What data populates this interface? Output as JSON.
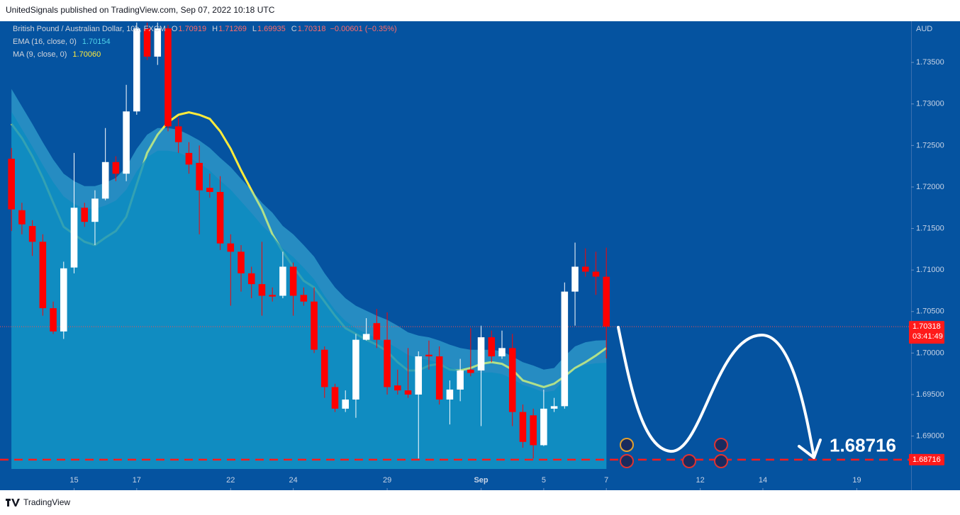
{
  "header": "UnitedSignals published on TradingView.com, Sep 07, 2022 10:18 UTC",
  "footer": "TradingView",
  "chart_data": {
    "type": "candlestick",
    "title": "British Pound / Australian Dollar, 10h, FXCM",
    "ohlc_labels": [
      "O",
      "H",
      "L",
      "C"
    ],
    "change": "−0.00601 (−0.35%)",
    "currency": "AUD",
    "countdown": "03:41:49",
    "target": 1.68716,
    "up_color": "#ffffff",
    "down_color": "#ff0000",
    "open": [
      1.7234,
      1.7172,
      1.7153,
      1.7134,
      1.7054,
      1.7026,
      1.7103,
      1.7175,
      1.7158,
      1.7186,
      1.723,
      1.7216,
      1.7291,
      1.7391,
      1.7357,
      1.7391,
      1.7273,
      1.7241,
      1.7229,
      1.7199,
      1.7194,
      1.7132,
      1.7122,
      1.7096,
      1.7083,
      1.707,
      1.7069,
      1.7104,
      1.707,
      1.7062,
      1.7004,
      1.6959,
      1.6933,
      1.6944,
      1.7016,
      1.7036,
      1.7016,
      1.6961,
      1.6955,
      1.695,
      1.6998,
      1.6996,
      1.6944,
      1.6956,
      1.698,
      1.6979,
      1.7019,
      1.6996,
      1.7006,
      1.6929,
      1.6925,
      1.6889,
      1.6933,
      1.6936,
      1.7074,
      1.7104,
      1.7098,
      1.70919
    ],
    "high": [
      1.7247,
      1.7181,
      1.716,
      1.7143,
      1.7062,
      1.711,
      1.7241,
      1.7181,
      1.7196,
      1.7271,
      1.7237,
      1.7323,
      1.7398,
      1.7398,
      1.7398,
      1.7395,
      1.7284,
      1.7254,
      1.725,
      1.7216,
      1.7213,
      1.7143,
      1.713,
      1.7104,
      1.7134,
      1.7079,
      1.7122,
      1.7109,
      1.7079,
      1.7079,
      1.7008,
      1.6963,
      1.6955,
      1.7023,
      1.7042,
      1.7053,
      1.7049,
      1.698,
      1.7006,
      1.7002,
      1.7015,
      1.7008,
      1.6967,
      1.6993,
      1.703,
      1.7033,
      1.7027,
      1.7027,
      1.7023,
      1.6938,
      1.6933,
      1.6956,
      1.6946,
      1.7085,
      1.7133,
      1.7126,
      1.7122,
      1.71269
    ],
    "low": [
      1.7147,
      1.7143,
      1.7117,
      1.7045,
      1.7023,
      1.7017,
      1.7096,
      1.7152,
      1.713,
      1.7184,
      1.7207,
      1.7207,
      1.7287,
      1.7353,
      1.7347,
      1.7267,
      1.7241,
      1.7216,
      1.7143,
      1.7187,
      1.7124,
      1.7057,
      1.7074,
      1.7066,
      1.7045,
      1.7062,
      1.7066,
      1.7045,
      1.7057,
      1.7,
      1.6946,
      1.6929,
      1.6929,
      1.6922,
      1.7015,
      1.7006,
      1.695,
      1.695,
      1.6946,
      1.6873,
      1.698,
      1.6938,
      1.6914,
      1.6942,
      1.6972,
      1.6912,
      1.6989,
      1.6993,
      1.6912,
      1.6886,
      1.6873,
      1.6888,
      1.6929,
      1.6933,
      1.7033,
      1.7092,
      1.707,
      1.69935
    ],
    "close": [
      1.7173,
      1.7155,
      1.7134,
      1.7054,
      1.7026,
      1.7102,
      1.7175,
      1.7158,
      1.7186,
      1.723,
      1.7216,
      1.7291,
      1.7391,
      1.7357,
      1.7391,
      1.7273,
      1.7254,
      1.7227,
      1.7196,
      1.7194,
      1.7132,
      1.7122,
      1.7096,
      1.7083,
      1.7069,
      1.7068,
      1.7104,
      1.7069,
      1.7062,
      1.7004,
      1.6959,
      1.6933,
      1.6944,
      1.7016,
      1.7023,
      1.7016,
      1.6959,
      1.6955,
      1.695,
      1.6996,
      1.6996,
      1.6944,
      1.6956,
      1.6979,
      1.6976,
      1.7019,
      1.6996,
      1.7006,
      1.6929,
      1.6893,
      1.6889,
      1.6933,
      1.6936,
      1.7074,
      1.7104,
      1.7098,
      1.7092,
      1.70318
    ],
    "series": [
      {
        "name": "EMA (16, close, 0)",
        "color": "#4fd3ea",
        "values": [
          1.7318,
          1.7297,
          1.7276,
          1.7254,
          1.7233,
          1.7216,
          1.7207,
          1.7201,
          1.7201,
          1.7205,
          1.7211,
          1.7224,
          1.7246,
          1.7263,
          1.7271,
          1.7271,
          1.7269,
          1.7263,
          1.7256,
          1.7247,
          1.7235,
          1.7224,
          1.721,
          1.7196,
          1.7181,
          1.7169,
          1.7153,
          1.7143,
          1.713,
          1.7116,
          1.7096,
          1.7079,
          1.7066,
          1.7057,
          1.7051,
          1.7045,
          1.704,
          1.7033,
          1.7025,
          1.7021,
          1.7019,
          1.7015,
          1.701,
          1.7006,
          1.7004,
          1.7004,
          1.7004,
          1.7002,
          1.6996,
          1.6989,
          1.6985,
          1.698,
          1.6982,
          1.6996,
          1.7008,
          1.7013,
          1.7015,
          1.70154
        ]
      },
      {
        "name": "MA (9, close, 0)",
        "color": "#ffeb3b",
        "values": [
          1.7276,
          1.7259,
          1.7237,
          1.7211,
          1.7181,
          1.7152,
          1.7143,
          1.7134,
          1.713,
          1.7139,
          1.7147,
          1.7164,
          1.7203,
          1.7241,
          1.7263,
          1.7278,
          1.7287,
          1.729,
          1.7287,
          1.7282,
          1.7267,
          1.7246,
          1.722,
          1.7196,
          1.7173,
          1.7143,
          1.7122,
          1.7104,
          1.7087,
          1.7079,
          1.7062,
          1.7045,
          1.703,
          1.7023,
          1.7016,
          1.701,
          1.7002,
          1.6989,
          1.6979,
          1.6979,
          1.6985,
          1.6987,
          1.698,
          1.6979,
          1.6982,
          1.6987,
          1.6989,
          1.6987,
          1.698,
          1.6967,
          1.6963,
          1.6959,
          1.6963,
          1.6972,
          1.6982,
          1.6989,
          1.6997,
          1.7006
        ],
        "value_labels": [
          null,
          null,
          null,
          null,
          null,
          null,
          null,
          null,
          null,
          null,
          null,
          null,
          null,
          null,
          null,
          null,
          null,
          null,
          null,
          null,
          null,
          null,
          null,
          null,
          null,
          null,
          null,
          null,
          null,
          null,
          null,
          null,
          null,
          null,
          null,
          null,
          null,
          null,
          null,
          null,
          null,
          null,
          null,
          null,
          null,
          null,
          null,
          null,
          null,
          null,
          null,
          null,
          null,
          null,
          null,
          null,
          null,
          "1.70060"
        ]
      }
    ],
    "xlim": [
      -1.1,
      86.2
    ],
    "xticks": [
      {
        "value": 6,
        "label": "15"
      },
      {
        "value": 12,
        "label": "17"
      },
      {
        "value": 21,
        "label": "22"
      },
      {
        "value": 27,
        "label": "24"
      },
      {
        "value": 36,
        "label": "29"
      },
      {
        "value": 45,
        "label": "Sep"
      },
      {
        "value": 51,
        "label": "5"
      },
      {
        "value": 57,
        "label": "7"
      },
      {
        "value": 66,
        "label": "12"
      },
      {
        "value": 72,
        "label": "14"
      },
      {
        "value": 81,
        "label": "19"
      }
    ],
    "ylim": [
      1.68348,
      1.73996
    ],
    "yticks": [
      {
        "value": 1.69,
        "label": "1.69000"
      },
      {
        "value": 1.695,
        "label": "1.69500"
      },
      {
        "value": 1.7,
        "label": "1.70000"
      },
      {
        "value": 1.705,
        "label": "1.70500"
      },
      {
        "value": 1.71,
        "label": "1.71000"
      },
      {
        "value": 1.715,
        "label": "1.71500"
      },
      {
        "value": 1.72,
        "label": "1.72000"
      },
      {
        "value": 1.725,
        "label": "1.72500"
      },
      {
        "value": 1.73,
        "label": "1.73000"
      },
      {
        "value": 1.735,
        "label": "1.73500"
      }
    ]
  }
}
